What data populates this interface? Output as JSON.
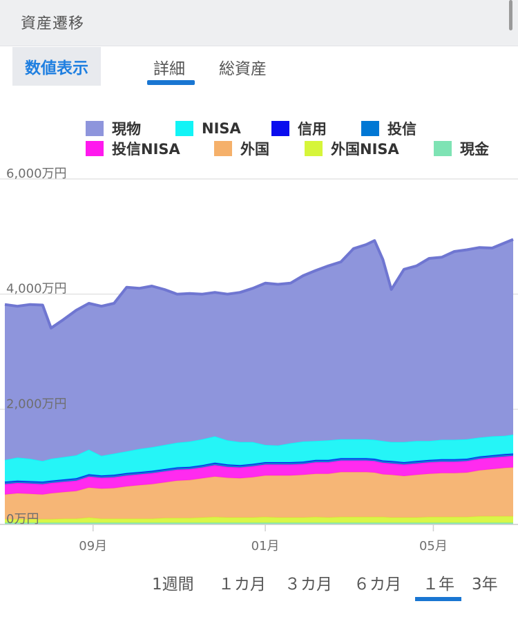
{
  "header": {
    "title": "資産遷移"
  },
  "toolbar": {
    "numeric_label": "数値表示"
  },
  "tabs": [
    {
      "label": "詳細",
      "active": true
    },
    {
      "label": "総資産",
      "active": false
    }
  ],
  "range_tabs": [
    {
      "label": "1週間",
      "active": false
    },
    {
      "label": "１カ月",
      "active": false
    },
    {
      "label": "３カ月",
      "active": false
    },
    {
      "label": "６カ月",
      "active": false
    },
    {
      "label": "１年",
      "active": true
    },
    {
      "label": "3年",
      "active": false
    }
  ],
  "accent_color": "#1976d2",
  "chart_data": {
    "type": "area",
    "stacked": true,
    "title": "",
    "xlabel": "",
    "ylabel": "",
    "ylim": [
      0,
      6000
    ],
    "y_ticks": [
      {
        "value": 0,
        "label": "0万円"
      },
      {
        "value": 2000,
        "label": "2,000万円"
      },
      {
        "value": 4000,
        "label": "4,000万円"
      },
      {
        "value": 6000,
        "label": "6,000万円"
      }
    ],
    "x_ticks": [
      {
        "x": 3.1,
        "label": "09月"
      },
      {
        "x": 7.2,
        "label": "01月"
      },
      {
        "x": 11.2,
        "label": "05月"
      }
    ],
    "xlim": [
      1,
      13.1
    ],
    "grid": true,
    "legend_position": "top",
    "x": [
      1.0,
      1.3,
      1.6,
      1.9,
      2.1,
      2.4,
      2.7,
      3.0,
      3.3,
      3.6,
      3.9,
      4.2,
      4.5,
      4.8,
      5.1,
      5.4,
      5.7,
      6.0,
      6.3,
      6.6,
      6.9,
      7.2,
      7.5,
      7.8,
      8.1,
      8.4,
      8.7,
      9.0,
      9.3,
      9.6,
      9.8,
      10.0,
      10.2,
      10.5,
      10.8,
      11.1,
      11.4,
      11.7,
      12.0,
      12.3,
      12.6,
      12.9,
      13.1
    ],
    "series": [
      {
        "name": "現金",
        "color": "#7ee3b4",
        "values": [
          30,
          30,
          30,
          30,
          30,
          30,
          30,
          30,
          30,
          30,
          30,
          30,
          30,
          30,
          30,
          30,
          30,
          30,
          30,
          30,
          30,
          30,
          30,
          30,
          30,
          30,
          30,
          30,
          30,
          30,
          30,
          30,
          30,
          30,
          30,
          30,
          30,
          30,
          30,
          30,
          30,
          30,
          30
        ]
      },
      {
        "name": "外国NISA",
        "color": "#d6f53a",
        "values": [
          60,
          60,
          60,
          60,
          60,
          70,
          70,
          90,
          70,
          70,
          70,
          70,
          70,
          80,
          80,
          80,
          90,
          100,
          90,
          90,
          90,
          100,
          90,
          90,
          90,
          100,
          90,
          100,
          100,
          100,
          100,
          100,
          90,
          90,
          90,
          100,
          100,
          100,
          100,
          110,
          110,
          110,
          110
        ]
      },
      {
        "name": "外国",
        "color": "#f5b06a",
        "values": [
          430,
          450,
          440,
          430,
          450,
          460,
          480,
          520,
          520,
          530,
          560,
          580,
          600,
          620,
          650,
          660,
          680,
          700,
          690,
          680,
          700,
          720,
          730,
          730,
          740,
          750,
          760,
          780,
          780,
          780,
          770,
          740,
          740,
          720,
          740,
          750,
          760,
          760,
          770,
          800,
          820,
          840,
          850
        ]
      },
      {
        "name": "投信NISA",
        "color": "#ff19ee",
        "values": [
          180,
          180,
          180,
          180,
          180,
          180,
          180,
          190,
          190,
          190,
          190,
          190,
          190,
          190,
          190,
          190,
          190,
          200,
          190,
          190,
          190,
          190,
          190,
          190,
          190,
          200,
          200,
          200,
          200,
          200,
          200,
          200,
          200,
          200,
          200,
          200,
          200,
          200,
          200,
          200,
          200,
          200,
          200
        ]
      },
      {
        "name": "投信",
        "color": "#0077d4",
        "values": [
          40,
          40,
          40,
          40,
          40,
          40,
          40,
          40,
          40,
          40,
          40,
          40,
          40,
          40,
          40,
          40,
          40,
          40,
          40,
          40,
          40,
          40,
          40,
          40,
          40,
          40,
          40,
          40,
          40,
          40,
          40,
          40,
          40,
          40,
          40,
          40,
          40,
          40,
          40,
          40,
          40,
          40,
          40
        ]
      },
      {
        "name": "信用",
        "color": "#0a0cee",
        "values": [
          0,
          0,
          0,
          0,
          0,
          0,
          0,
          0,
          0,
          0,
          0,
          0,
          0,
          0,
          0,
          0,
          0,
          0,
          0,
          0,
          0,
          0,
          0,
          0,
          0,
          0,
          0,
          0,
          0,
          0,
          0,
          0,
          0,
          0,
          0,
          0,
          0,
          0,
          0,
          0,
          0,
          0,
          0
        ]
      },
      {
        "name": "NISA",
        "color": "#12f4f6",
        "values": [
          380,
          400,
          390,
          360,
          380,
          390,
          400,
          430,
          340,
          370,
          380,
          400,
          410,
          420,
          430,
          440,
          450,
          460,
          420,
          400,
          380,
          300,
          290,
          330,
          350,
          330,
          340,
          330,
          330,
          330,
          330,
          340,
          330,
          350,
          350,
          330,
          340,
          340,
          340,
          330,
          330,
          320,
          330
        ]
      },
      {
        "name": "現物",
        "color": "#8e95dc",
        "values": [
          2700,
          2630,
          2680,
          2710,
          2270,
          2390,
          2520,
          2540,
          2600,
          2610,
          2850,
          2790,
          2800,
          2700,
          2580,
          2570,
          2520,
          2500,
          2540,
          2600,
          2670,
          2810,
          2800,
          2780,
          2880,
          2960,
          3030,
          3080,
          3310,
          3380,
          3460,
          3150,
          2650,
          3000,
          3040,
          3170,
          3170,
          3270,
          3290,
          3300,
          3270,
          3350,
          3390
        ]
      }
    ]
  }
}
